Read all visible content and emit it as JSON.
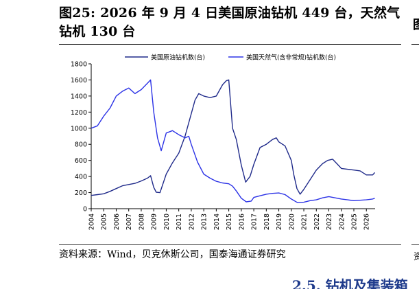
{
  "figure": {
    "title_line1": "图25: 2026 年 9 月 4 日美国原油钻机 449 台，天然气",
    "title_line2": "钻机 130 台",
    "source": "资料来源：Wind，贝克休斯公司，国泰海通证券研究",
    "right_edge_glyph": "图",
    "right_edge_source": "资",
    "next_heading_fragment": "2.5. 钻机及集装箱"
  },
  "chart_data": {
    "type": "line",
    "title": "",
    "xlabel": "",
    "ylabel": "",
    "ylim": [
      0,
      1800
    ],
    "yticks": [
      0,
      200,
      400,
      600,
      800,
      1000,
      1200,
      1400,
      1600,
      1800
    ],
    "xlim": [
      2004,
      2026.7
    ],
    "xticks": [
      "2004",
      "2005",
      "2006",
      "2007",
      "2008",
      "2009",
      "2010",
      "2011",
      "2012",
      "2013",
      "2014",
      "2015",
      "2016",
      "2017",
      "2018",
      "2019",
      "2020",
      "2021",
      "2022",
      "2023",
      "2024",
      "2025",
      "2026"
    ],
    "grid": false,
    "legend_position": "top",
    "series": [
      {
        "name": "美国原油钻机数(台)",
        "color": "#1f2a8a",
        "x": [
          2004.0,
          2004.5,
          2005.0,
          2005.5,
          2006.0,
          2006.5,
          2007.0,
          2007.5,
          2008.0,
          2008.5,
          2008.75,
          2009.0,
          2009.2,
          2009.5,
          2010.0,
          2010.5,
          2011.0,
          2011.5,
          2012.0,
          2012.3,
          2012.6,
          2013.0,
          2013.5,
          2014.0,
          2014.5,
          2014.8,
          2015.0,
          2015.3,
          2015.6,
          2016.0,
          2016.35,
          2016.7,
          2017.0,
          2017.5,
          2018.0,
          2018.5,
          2018.8,
          2019.0,
          2019.5,
          2020.0,
          2020.2,
          2020.45,
          2020.7,
          2021.0,
          2021.5,
          2022.0,
          2022.5,
          2022.9,
          2023.3,
          2023.7,
          2024.0,
          2024.5,
          2025.0,
          2025.5,
          2026.0,
          2026.5,
          2026.67
        ],
        "y": [
          165,
          175,
          185,
          215,
          250,
          285,
          300,
          315,
          345,
          380,
          410,
          265,
          205,
          200,
          430,
          570,
          690,
          900,
          1180,
          1350,
          1430,
          1400,
          1380,
          1400,
          1540,
          1590,
          1600,
          1000,
          860,
          540,
          330,
          400,
          550,
          760,
          800,
          860,
          880,
          830,
          780,
          600,
          420,
          250,
          180,
          240,
          360,
          480,
          560,
          600,
          615,
          550,
          500,
          490,
          480,
          470,
          420,
          420,
          449
        ]
      },
      {
        "name": "美国天然气(含非常规)钻机数(台)",
        "color": "#2b32e6",
        "x": [
          2004.0,
          2004.5,
          2005.0,
          2005.5,
          2006.0,
          2006.5,
          2007.0,
          2007.5,
          2008.0,
          2008.5,
          2008.75,
          2009.0,
          2009.3,
          2009.6,
          2010.0,
          2010.5,
          2011.0,
          2011.5,
          2011.8,
          2012.0,
          2012.5,
          2013.0,
          2013.5,
          2014.0,
          2014.5,
          2015.0,
          2015.3,
          2015.6,
          2016.0,
          2016.4,
          2016.8,
          2017.0,
          2017.5,
          2018.0,
          2018.5,
          2019.0,
          2019.5,
          2020.0,
          2020.5,
          2021.0,
          2021.5,
          2022.0,
          2022.5,
          2023.0,
          2023.5,
          2024.0,
          2024.5,
          2025.0,
          2025.5,
          2026.0,
          2026.5,
          2026.67
        ],
        "y": [
          1000,
          1030,
          1150,
          1250,
          1400,
          1460,
          1500,
          1430,
          1480,
          1560,
          1600,
          1200,
          880,
          720,
          940,
          970,
          920,
          880,
          900,
          800,
          580,
          430,
          380,
          340,
          320,
          310,
          280,
          220,
          130,
          85,
          95,
          140,
          160,
          180,
          190,
          195,
          175,
          120,
          75,
          80,
          100,
          110,
          135,
          150,
          135,
          120,
          110,
          100,
          105,
          110,
          120,
          130
        ]
      }
    ]
  }
}
